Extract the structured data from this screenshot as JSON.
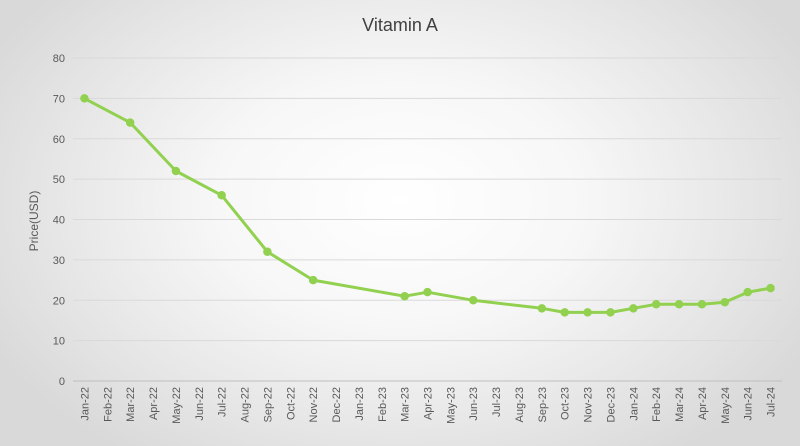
{
  "chart_data": {
    "type": "line",
    "title": "Vitamin A",
    "xlabel": "",
    "ylabel": "Price(USD)",
    "ylim": [
      0,
      80
    ],
    "yticks": [
      0,
      10,
      20,
      30,
      40,
      50,
      60,
      70,
      80
    ],
    "grid": true,
    "legend": "none",
    "line_color": "#92d050",
    "grid_color": "#d9d9d9",
    "categories": [
      "Jan-22",
      "Feb-22",
      "Mar-22",
      "Apr-22",
      "May-22",
      "Jun-22",
      "Jul-22",
      "Aug-22",
      "Sep-22",
      "Oct-22",
      "Nov-22",
      "Dec-22",
      "Jan-23",
      "Feb-23",
      "Mar-23",
      "Apr-23",
      "May-23",
      "Jun-23",
      "Jul-23",
      "Aug-23",
      "Sep-23",
      "Oct-23",
      "Nov-23",
      "Dec-23",
      "Jan-24",
      "Feb-24",
      "Mar-24",
      "Apr-24",
      "May-24",
      "Jun-24",
      "Jul-24"
    ],
    "series": [
      {
        "name": "Vitamin A",
        "points": [
          {
            "x": "Jan-22",
            "y": 70
          },
          {
            "x": "Mar-22",
            "y": 64
          },
          {
            "x": "May-22",
            "y": 52
          },
          {
            "x": "Jul-22",
            "y": 46
          },
          {
            "x": "Sep-22",
            "y": 32
          },
          {
            "x": "Nov-22",
            "y": 25
          },
          {
            "x": "Mar-23",
            "y": 21
          },
          {
            "x": "Apr-23",
            "y": 22
          },
          {
            "x": "Jun-23",
            "y": 20
          },
          {
            "x": "Sep-23",
            "y": 18
          },
          {
            "x": "Oct-23",
            "y": 17
          },
          {
            "x": "Nov-23",
            "y": 17
          },
          {
            "x": "Dec-23",
            "y": 17
          },
          {
            "x": "Jan-24",
            "y": 18
          },
          {
            "x": "Feb-24",
            "y": 19
          },
          {
            "x": "Mar-24",
            "y": 19
          },
          {
            "x": "Apr-24",
            "y": 19
          },
          {
            "x": "May-24",
            "y": 19.5
          },
          {
            "x": "Jun-24",
            "y": 22
          },
          {
            "x": "Jul-24",
            "y": 23
          }
        ]
      }
    ]
  }
}
